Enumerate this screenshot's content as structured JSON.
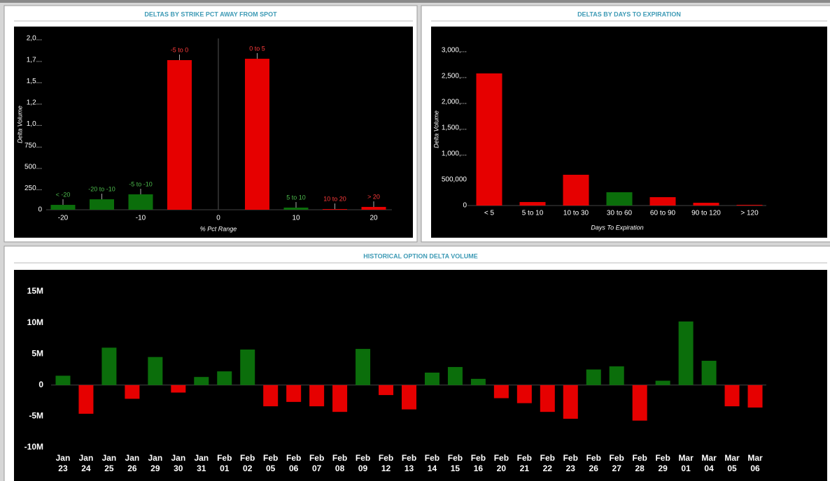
{
  "chart_data": [
    {
      "type": "bar",
      "title": "DELTAS BY STRIKE PCT AWAY FROM SPOT",
      "x_label": "% Pct Range",
      "y_label": "Delta Volume",
      "x": [
        -20,
        -15,
        -10,
        -5,
        5,
        10,
        15,
        20
      ],
      "values": [
        57,
        122,
        180,
        1747,
        1763,
        25,
        8,
        33
      ],
      "point_labels": [
        "< -20",
        "-20 to -10",
        "-5 to -10",
        "-5 to 0",
        "0 to 5",
        "5 to 10",
        "10 to 20",
        "> 20"
      ],
      "colors": [
        "#0b6e0b",
        "#0b6e0b",
        "#0b6e0b",
        "#e60000",
        "#e60000",
        "#0b6e0b",
        "#e60000",
        "#e60000"
      ],
      "label_colors": [
        "#4cbb4c",
        "#4cbb4c",
        "#4cbb4c",
        "#ff3b3b",
        "#ff3b3b",
        "#4cbb4c",
        "#ff3b3b",
        "#ff3b3b"
      ],
      "xlim": [
        -25,
        25
      ],
      "xticks": [
        -20,
        -10,
        0,
        10,
        20
      ],
      "ylim": [
        0,
        2000
      ],
      "yticks": [
        0,
        {
          "value": 250,
          "label": "250..."
        },
        {
          "value": 500,
          "label": "500..."
        },
        {
          "value": 750,
          "label": "750..."
        },
        {
          "value": 1000,
          "label": "1,0..."
        },
        {
          "value": 1250,
          "label": "1,2..."
        },
        {
          "value": 1500,
          "label": "1,5..."
        },
        {
          "value": 1750,
          "label": "1,7..."
        },
        {
          "value": 2000,
          "label": "2,0..."
        }
      ]
    },
    {
      "type": "bar",
      "title": "DELTAS BY DAYS TO EXPIRATION",
      "x_label": "Days To Expiration",
      "y_label": "Delta Volume",
      "categories": [
        "< 5",
        "5 to 10",
        "10 to 30",
        "30 to 60",
        "60 to 90",
        "90 to 120",
        "> 120"
      ],
      "values": [
        2554000,
        68000,
        595000,
        257000,
        162000,
        54000,
        14000
      ],
      "colors": [
        "#e60000",
        "#e60000",
        "#e60000",
        "#0b6e0b",
        "#e60000",
        "#e60000",
        "#e60000"
      ],
      "ylim": [
        0,
        3000000
      ],
      "yticks": [
        0,
        {
          "value": 500000,
          "label": "500,000"
        },
        {
          "value": 1000000,
          "label": "1,000,..."
        },
        {
          "value": 1500000,
          "label": "1,500,..."
        },
        {
          "value": 2000000,
          "label": "2,000,..."
        },
        {
          "value": 2500000,
          "label": "2,500,..."
        },
        {
          "value": 3000000,
          "label": "3,000,..."
        }
      ]
    },
    {
      "type": "bar",
      "title": "HISTORICAL OPTION DELTA VOLUME",
      "categories": [
        "Jan 23",
        "Jan 24",
        "Jan 25",
        "Jan 26",
        "Jan 29",
        "Jan 30",
        "Jan 31",
        "Feb 01",
        "Feb 02",
        "Feb 05",
        "Feb 06",
        "Feb 07",
        "Feb 08",
        "Feb 09",
        "Feb 12",
        "Feb 13",
        "Feb 14",
        "Feb 15",
        "Feb 16",
        "Feb 20",
        "Feb 21",
        "Feb 22",
        "Feb 23",
        "Feb 26",
        "Feb 27",
        "Feb 28",
        "Feb 29",
        "Mar 01",
        "Mar 04",
        "Mar 05",
        "Mar 06"
      ],
      "values": [
        1500000,
        -4600000,
        6000000,
        -2200000,
        4500000,
        -1200000,
        1300000,
        2200000,
        5700000,
        -3400000,
        -2700000,
        -3400000,
        -4300000,
        5800000,
        -1600000,
        -3900000,
        2000000,
        2900000,
        1000000,
        -2100000,
        -2900000,
        -4300000,
        -5400000,
        2500000,
        3000000,
        -5700000,
        700000,
        10200000,
        3900000,
        -3400000,
        -3600000
      ],
      "positive_color": "#0b6e0b",
      "negative_color": "#e60000",
      "ylim": [
        -10000000,
        15000000
      ],
      "yticks": [
        {
          "value": -10000000,
          "label": "-10M"
        },
        {
          "value": -5000000,
          "label": "-5M"
        },
        0,
        {
          "value": 5000000,
          "label": "5M"
        },
        {
          "value": 10000000,
          "label": "10M"
        },
        {
          "value": 15000000,
          "label": "15M"
        }
      ]
    }
  ]
}
